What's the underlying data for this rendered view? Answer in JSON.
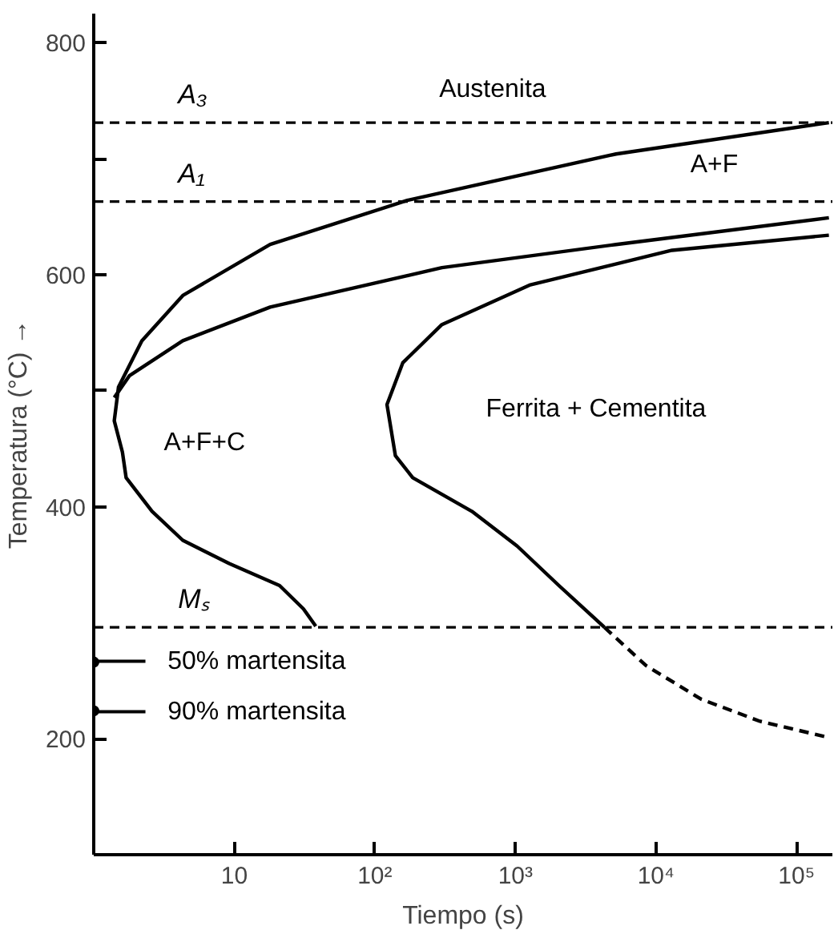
{
  "chart_data": {
    "type": "line",
    "xlabel": "Tiempo (s)",
    "ylabel": "Temperatura (°C) →",
    "log": "x",
    "grid": false,
    "marker": "none",
    "xlim": [
      1,
      180000
    ],
    "ylim": [
      100,
      825
    ],
    "xticks": [
      10,
      {
        "value": 100,
        "label": "10²"
      },
      {
        "value": 1000,
        "label": "10³"
      },
      {
        "value": 10000,
        "label": "10⁴"
      },
      {
        "value": 100000,
        "label": "10⁵"
      }
    ],
    "yticks": [
      200,
      400,
      600,
      800,
      {
        "value": 500,
        "label": null
      },
      {
        "value": 700,
        "label": null
      }
    ],
    "series": [
      {
        "color": "#000000",
        "line_style": "solid",
        "x": [
          170000,
          5200,
          170,
          18,
          4.3,
          2.2,
          1.5,
          1.4,
          1.6,
          1.7,
          2.6,
          4.3,
          9.2,
          21,
          31,
          38
        ],
        "values": [
          731,
          704,
          664,
          626,
          582,
          543,
          503,
          474,
          447,
          425,
          396,
          371,
          351,
          332,
          312,
          297
        ]
      },
      {
        "color": "#000000",
        "line_style": "solid",
        "x": [
          170000,
          5200,
          300,
          18,
          4.3,
          1.8,
          1.4
        ],
        "values": [
          649,
          626,
          606,
          572,
          543,
          513,
          494
        ]
      },
      {
        "color": "#000000",
        "line_style": "solid",
        "x": [
          170000,
          13000,
          1260,
          300,
          158,
          122,
          140,
          186,
          490,
          1030,
          2040,
          4300
        ],
        "values": [
          634,
          621,
          591,
          557,
          524,
          488,
          444,
          425,
          396,
          366,
          332,
          296
        ]
      },
      {
        "color": "#000000",
        "line_style": "dashed",
        "x": [
          4300,
          8500,
          21000,
          55000,
          170000
        ],
        "values": [
          296,
          263,
          234,
          215,
          201
        ]
      },
      {
        "type": "scatter",
        "marker": "circle",
        "color": "#000000",
        "x": [
          1,
          1
        ],
        "values": [
          266,
          224
        ]
      }
    ],
    "ref_lines": [
      {
        "axis": "y",
        "value": 731,
        "label": "A₃",
        "color": "#000000",
        "line_style": "dashed"
      },
      {
        "axis": "y",
        "value": 663,
        "label": "A₁",
        "color": "#000000",
        "line_style": "dashed"
      },
      {
        "axis": "y",
        "value": 296,
        "label": "Mₛ",
        "color": "#000000",
        "line_style": "dashed"
      }
    ],
    "annotations": [
      "Austenita",
      "A+F",
      "A+F+C",
      "Ferrita + Cementita",
      "50% martensita",
      "90% martensita"
    ]
  }
}
